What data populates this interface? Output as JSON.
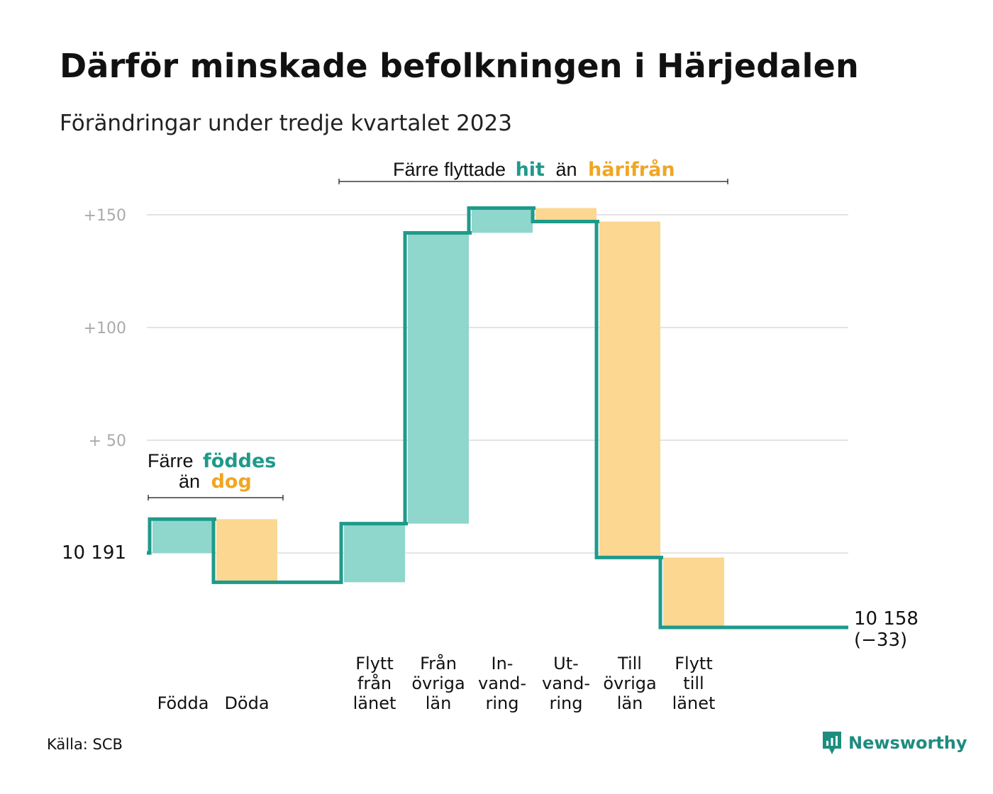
{
  "header": {
    "title": "Därför minskade befolkningen i Härjedalen",
    "subtitle": "Förändringar under tredje kvartalet 2023"
  },
  "footer": {
    "source": "Källa: SCB",
    "brand": "Newsworthy"
  },
  "annotations": {
    "migration": {
      "prefix": "Färre flyttade",
      "hit": "hit",
      "middle": "än",
      "harifran": "härifrån"
    },
    "births": {
      "prefix": "Färre",
      "foddes": "föddes",
      "middle": "än",
      "dog": "dog"
    }
  },
  "colors": {
    "line": "#1f9a8a",
    "increase": "#8fd6cc",
    "decrease": "#fcd791",
    "grid": "#e4e4e4",
    "teal_text": "#1f9a8a",
    "orange_text": "#f0a623"
  },
  "chart_data": {
    "type": "waterfall",
    "start_value": 10191,
    "start_label": "10  191",
    "end_value": 10158,
    "end_label": "10 158",
    "end_change_label": "(−33)",
    "ylim": [
      -23,
      161
    ],
    "yticks": [
      {
        "value": 50,
        "label": "+  50"
      },
      {
        "value": 100,
        "label": "+100"
      },
      {
        "value": 150,
        "label": "+150"
      }
    ],
    "grid": true,
    "steps": [
      {
        "category": "Födda",
        "label_lines": [
          "Födda"
        ],
        "change": 15,
        "kind": "increase"
      },
      {
        "category": "Döda",
        "label_lines": [
          "Döda"
        ],
        "change": -28,
        "kind": "decrease"
      },
      {
        "category": "Flytt från länet",
        "label_lines": [
          "Flytt",
          "från",
          "länet"
        ],
        "change": 26,
        "kind": "increase"
      },
      {
        "category": "Från övriga län",
        "label_lines": [
          "Från",
          "övriga",
          "län"
        ],
        "change": 129,
        "kind": "increase"
      },
      {
        "category": "In-vandring",
        "label_lines": [
          "In-",
          "vand-",
          "ring"
        ],
        "change": 11,
        "kind": "increase"
      },
      {
        "category": "Ut-vandring",
        "label_lines": [
          "Ut-",
          "vand-",
          "ring"
        ],
        "change": -6,
        "kind": "decrease"
      },
      {
        "category": "Till övriga län",
        "label_lines": [
          "Till",
          "övriga",
          "län"
        ],
        "change": -149,
        "kind": "decrease"
      },
      {
        "category": "Flytt till länet",
        "label_lines": [
          "Flytt",
          "till",
          "länet"
        ],
        "change": -31,
        "kind": "decrease"
      }
    ],
    "gaps_after": [
      "Döda"
    ]
  }
}
